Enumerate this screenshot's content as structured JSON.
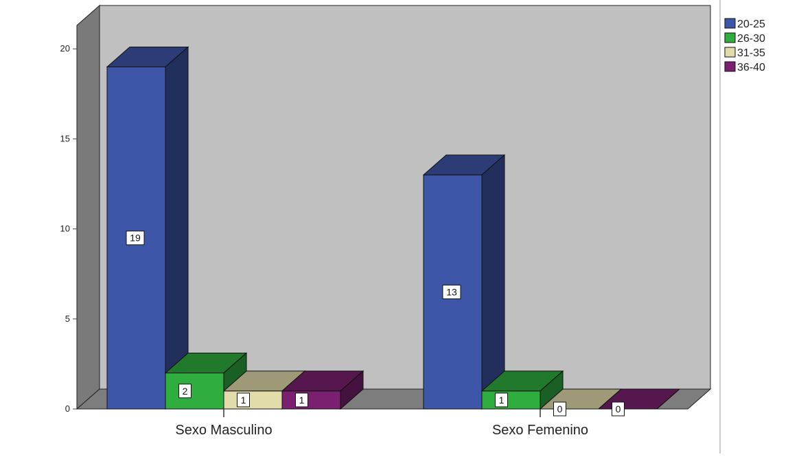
{
  "chart_data": {
    "type": "bar",
    "style": "3d-clustered",
    "categories": [
      "Sexo Masculino",
      "Sexo Femenino"
    ],
    "series": [
      {
        "name": "20-25",
        "values": [
          19,
          13
        ],
        "color": "#3e56a8"
      },
      {
        "name": "26-30",
        "values": [
          2,
          1
        ],
        "color": "#2fad3f"
      },
      {
        "name": "31-35",
        "values": [
          1,
          0
        ],
        "color": "#e2dcaa"
      },
      {
        "name": "36-40",
        "values": [
          1,
          0
        ],
        "color": "#7b2070"
      }
    ],
    "y_ticks": [
      "0",
      "5",
      "10",
      "15",
      "20"
    ],
    "ylim": [
      0,
      21
    ],
    "title": "",
    "xlabel": "",
    "ylabel": "",
    "legend_position": "top-right",
    "data_labels": true,
    "grid": false,
    "colors": {
      "wall_back": "#c0c0c0",
      "wall_side": "#7a7a7a",
      "floor": "#7d7d7d"
    }
  }
}
